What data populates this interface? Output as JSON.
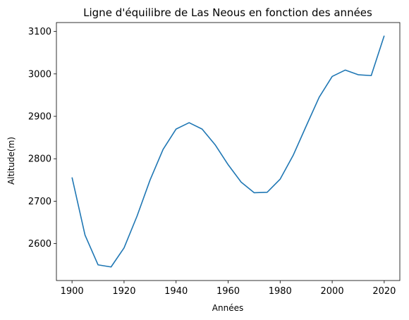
{
  "chart_data": {
    "type": "line",
    "title": "Ligne d'équilibre de Las Neous en fonction des années",
    "xlabel": "Années",
    "ylabel": "Altitude(m)",
    "xlim": [
      1894,
      2026
    ],
    "ylim": [
      2513,
      3121
    ],
    "xticks": [
      1900,
      1920,
      1940,
      1960,
      1980,
      2000,
      2020
    ],
    "yticks": [
      2600,
      2700,
      2800,
      2900,
      3000,
      3100
    ],
    "grid": false,
    "legend": "none",
    "line_color": "#1f77b4",
    "series": [
      {
        "x": [
          1900,
          1905,
          1910,
          1915,
          1920,
          1925,
          1930,
          1935,
          1940,
          1945,
          1950,
          1955,
          1960,
          1965,
          1970,
          1975,
          1980,
          1985,
          1990,
          1995,
          2000,
          2005,
          2010,
          2015,
          2020
        ],
        "values": [
          2756,
          2620,
          2550,
          2545,
          2590,
          2665,
          2750,
          2822,
          2870,
          2885,
          2870,
          2833,
          2786,
          2745,
          2720,
          2721,
          2752,
          2808,
          2877,
          2945,
          2994,
          3009,
          2998,
          2996,
          3090
        ]
      }
    ]
  }
}
